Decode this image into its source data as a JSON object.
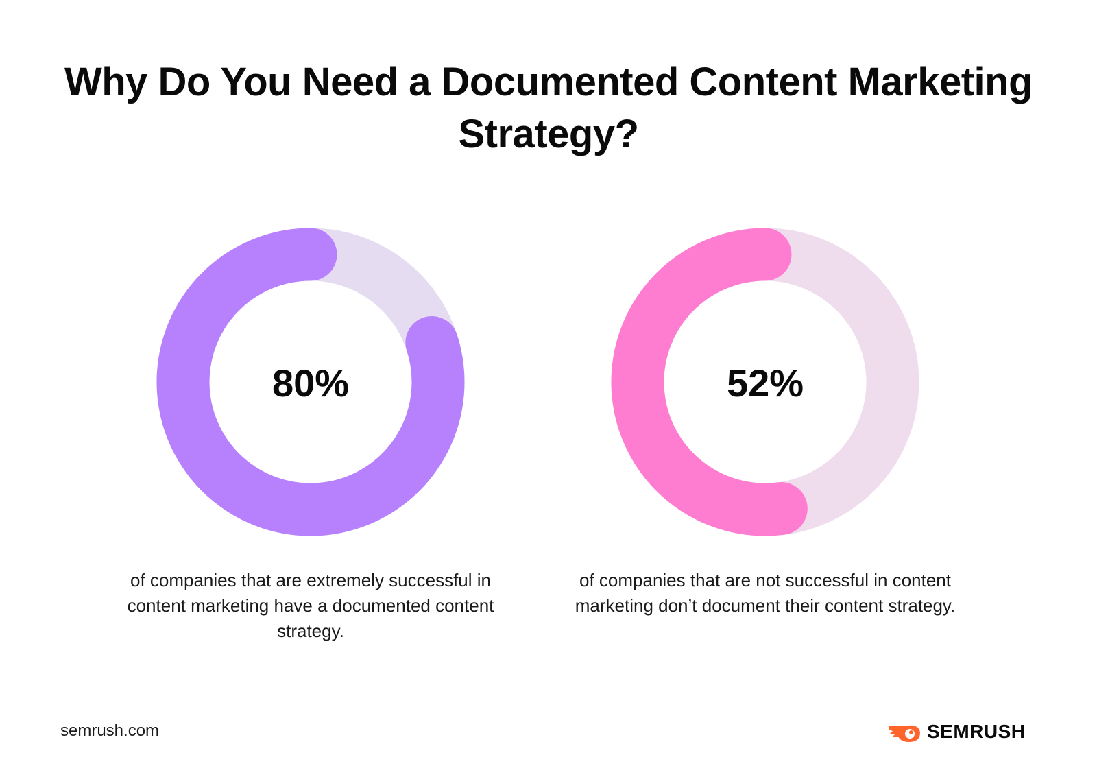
{
  "title": "Why Do You Need a Documented Content Marketing Strategy?",
  "chart_data": [
    {
      "type": "pie",
      "variant": "donut",
      "value": 80,
      "label": "80%",
      "caption": "of companies that are extremely successful in content marketing have a documented content strategy.",
      "color": "#B780FD",
      "track_color": "#E6DCF2"
    },
    {
      "type": "pie",
      "variant": "donut",
      "value": 52,
      "label": "52%",
      "caption": "of companies that are not successful in content marketing don’t document their content strategy.",
      "color": "#FF7DD0",
      "track_color": "#EFDDEE"
    }
  ],
  "footer": {
    "site": "semrush.com",
    "logo_text": "SEMRUSH",
    "logo_color": "#FF642D"
  }
}
